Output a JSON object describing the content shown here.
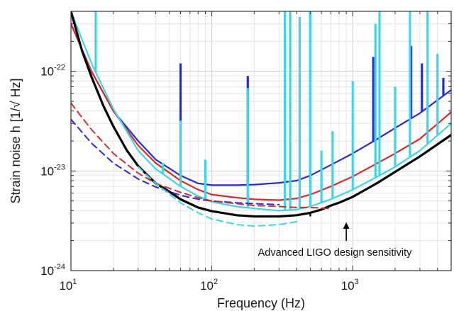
{
  "chart_data": {
    "type": "line",
    "title": "",
    "xlabel": "Frequency (Hz)",
    "ylabel": "Strain noise h [1/√ Hz]",
    "xscale": "log",
    "yscale": "log",
    "xlim": [
      10,
      5000
    ],
    "ylim": [
      1e-24,
      4e-22
    ],
    "grid": true,
    "x_ticks": [
      {
        "value": 10,
        "base": "10",
        "exp": "1"
      },
      {
        "value": 100,
        "base": "10",
        "exp": "2"
      },
      {
        "value": 1000,
        "base": "10",
        "exp": "3"
      }
    ],
    "y_ticks": [
      {
        "value": 1e-24,
        "base": "10",
        "exp": "-24"
      },
      {
        "value": 1e-23,
        "base": "10",
        "exp": "-23"
      },
      {
        "value": 1e-22,
        "base": "10",
        "exp": "-22"
      }
    ],
    "annotation": {
      "text": "Advanced LIGO design sensitivity",
      "points_to": [
        900,
        3.1e-24
      ]
    },
    "series": [
      {
        "color": "#2b2bd6",
        "style": "solid",
        "x": [
          10,
          14,
          20,
          30,
          40,
          60,
          80,
          100,
          150,
          200,
          300,
          400,
          500,
          700,
          1000,
          1500,
          2000,
          3000,
          5000
        ],
        "y": [
          3e-22,
          1e-22,
          4e-23,
          2e-23,
          1.3e-23,
          9e-24,
          7.5e-24,
          7.2e-24,
          7.2e-24,
          7.3e-24,
          7.6e-24,
          8e-24,
          9e-24,
          1.15e-23,
          1.5e-23,
          2.1e-23,
          2.7e-23,
          3.8e-23,
          6.5e-23
        ],
        "lines": [
          [
            60,
            1.2e-22
          ],
          [
            180,
            9e-23
          ],
          [
            330,
            2.6e-22
          ],
          [
            500,
            4e-22
          ],
          [
            1400,
            1.4e-22
          ],
          [
            2600,
            1.8e-22
          ],
          [
            3100,
            1.2e-22
          ],
          [
            4400,
            8.6e-23
          ]
        ]
      },
      {
        "color": "#dc2a2a",
        "style": "solid",
        "x": [
          10,
          14,
          20,
          30,
          40,
          60,
          80,
          100,
          150,
          200,
          300,
          400,
          500,
          700,
          1000,
          1500,
          2000,
          3000,
          5000
        ],
        "y": [
          3e-22,
          1e-22,
          4e-23,
          1.8e-23,
          1.2e-23,
          8e-24,
          6.5e-24,
          5.8e-24,
          5.4e-24,
          5.2e-24,
          5.1e-24,
          5.3e-24,
          5.8e-24,
          7e-24,
          8.8e-24,
          1.2e-23,
          1.5e-23,
          2.1e-23,
          3.9e-23
        ]
      },
      {
        "color": "#3ed6e6",
        "style": "solid",
        "x": [
          10,
          14,
          20,
          30,
          40,
          60,
          80,
          100,
          150,
          200,
          300,
          400,
          500,
          700,
          1000,
          1500,
          2000,
          3000,
          5000
        ],
        "y": [
          4e-22,
          1.2e-22,
          4.2e-23,
          1.6e-23,
          1.05e-23,
          7e-24,
          5.6e-24,
          4.9e-24,
          4.4e-24,
          4.2e-24,
          4e-24,
          4.1e-24,
          4.4e-24,
          5.2e-24,
          6.5e-24,
          8.8e-24,
          1.1e-23,
          1.6e-23,
          3e-23
        ],
        "lines": [
          [
            15,
            4e-22
          ],
          [
            45,
            1.2e-23
          ],
          [
            60,
            3.2e-23
          ],
          [
            90,
            1.3e-23
          ],
          [
            180,
            6.8e-23
          ],
          [
            330,
            4e-22
          ],
          [
            360,
            4e-22
          ],
          [
            420,
            3.5e-22
          ],
          [
            500,
            4e-22
          ],
          [
            600,
            1.6e-23
          ],
          [
            720,
            2.5e-23
          ],
          [
            1000,
            8e-23
          ],
          [
            1450,
            3e-22
          ],
          [
            1550,
            4e-22
          ],
          [
            2000,
            7e-23
          ],
          [
            2550,
            4e-22
          ],
          [
            3400,
            4e-22
          ],
          [
            4000,
            1.5e-22
          ]
        ]
      },
      {
        "color": "#000000",
        "style": "solid",
        "x": [
          10,
          12,
          14,
          17,
          20,
          25,
          30,
          40,
          50,
          60,
          80,
          100,
          150,
          200,
          300,
          400,
          500,
          600,
          700,
          800,
          1000,
          1500,
          2000,
          3000,
          5000
        ],
        "y": [
          4e-22,
          1.6e-22,
          8.8e-23,
          4.5e-23,
          2.8e-23,
          1.6e-23,
          1.12e-23,
          7.5e-24,
          6.2e-24,
          5.2e-24,
          4.3e-24,
          3.95e-24,
          3.6e-24,
          3.5e-24,
          3.5e-24,
          3.6e-24,
          3.8e-24,
          4.1e-24,
          4.5e-24,
          4.8e-24,
          5.5e-24,
          7.6e-24,
          9.8e-24,
          1.4e-23,
          2.3e-23
        ],
        "lines": [
          [
            500,
            3.5e-24
          ]
        ]
      },
      {
        "color": "#2b2bd6",
        "style": "dashed",
        "x": [
          10,
          14,
          20,
          30,
          40,
          60,
          80,
          100,
          150,
          200,
          300
        ],
        "y": [
          3.3e-23,
          1.9e-23,
          1.2e-23,
          8.3e-24,
          6.9e-24,
          5.7e-24,
          5.2e-24,
          5e-24,
          4.8e-24,
          4.7e-24,
          4.6e-24
        ]
      },
      {
        "color": "#dc2a2a",
        "style": "dashed",
        "x": [
          10,
          14,
          20,
          30,
          40,
          60,
          80,
          100,
          150,
          200,
          300,
          400,
          500,
          700
        ],
        "y": [
          4.8e-23,
          2.6e-23,
          1.5e-23,
          9.5e-24,
          7.5e-24,
          6.1e-24,
          5.4e-24,
          5e-24,
          4.7e-24,
          4.5e-24,
          4.4e-24,
          4.3e-24,
          4.3e-24,
          4.2e-24
        ]
      },
      {
        "color": "#3ed6e6",
        "style": "dashed",
        "x": [
          30,
          40,
          60,
          80,
          100,
          150,
          200,
          300,
          400
        ],
        "y": [
          1.1e-23,
          7.5e-24,
          4.8e-24,
          3.8e-24,
          3.3e-24,
          2.9e-24,
          2.8e-24,
          2.9e-24,
          3.1e-24
        ]
      }
    ]
  }
}
